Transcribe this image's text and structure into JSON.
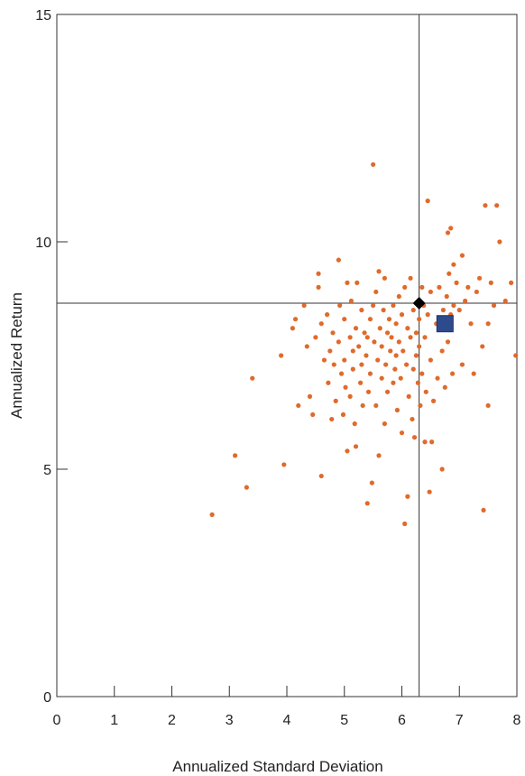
{
  "chart_data": {
    "type": "scatter",
    "title": "",
    "xlabel": "Annualized Standard Deviation",
    "ylabel": "Annualized Return",
    "xlim": [
      0,
      8
    ],
    "ylim": [
      0,
      15
    ],
    "xticks": [
      "0",
      "1",
      "2",
      "3",
      "4",
      "5",
      "6",
      "7",
      "8"
    ],
    "yticks": [
      "0",
      "5",
      "10",
      "15"
    ],
    "grid": false,
    "legend": "none",
    "reference_lines": {
      "x": 6.3,
      "y": 8.65
    },
    "colors": {
      "funds": "#e06a2c",
      "square": "#2d4a8c",
      "diamond": "#000000",
      "axis": "#333333"
    },
    "series": [
      {
        "marker": "circle",
        "points": [
          [
            2.7,
            4.0
          ],
          [
            3.1,
            5.3
          ],
          [
            3.3,
            4.6
          ],
          [
            3.4,
            7.0
          ],
          [
            3.9,
            7.5
          ],
          [
            3.95,
            5.1
          ],
          [
            4.1,
            8.1
          ],
          [
            4.15,
            8.3
          ],
          [
            4.2,
            6.4
          ],
          [
            4.3,
            8.6
          ],
          [
            4.35,
            7.7
          ],
          [
            4.4,
            6.6
          ],
          [
            4.45,
            6.2
          ],
          [
            4.5,
            7.9
          ],
          [
            4.55,
            9.3
          ],
          [
            4.55,
            9.0
          ],
          [
            4.6,
            8.2
          ],
          [
            4.6,
            4.85
          ],
          [
            4.65,
            7.4
          ],
          [
            4.7,
            8.4
          ],
          [
            4.72,
            6.9
          ],
          [
            4.75,
            7.6
          ],
          [
            4.78,
            6.1
          ],
          [
            4.8,
            8.0
          ],
          [
            4.82,
            7.3
          ],
          [
            4.85,
            6.5
          ],
          [
            4.9,
            9.6
          ],
          [
            4.9,
            7.8
          ],
          [
            4.92,
            8.6
          ],
          [
            4.95,
            7.1
          ],
          [
            4.98,
            6.2
          ],
          [
            5.0,
            8.3
          ],
          [
            5.0,
            7.4
          ],
          [
            5.02,
            6.8
          ],
          [
            5.05,
            5.4
          ],
          [
            5.05,
            9.1
          ],
          [
            5.1,
            7.9
          ],
          [
            5.1,
            6.6
          ],
          [
            5.12,
            8.7
          ],
          [
            5.15,
            7.6
          ],
          [
            5.15,
            7.2
          ],
          [
            5.18,
            6.0
          ],
          [
            5.2,
            8.1
          ],
          [
            5.2,
            5.5
          ],
          [
            5.22,
            9.1
          ],
          [
            5.25,
            7.7
          ],
          [
            5.28,
            6.9
          ],
          [
            5.3,
            8.5
          ],
          [
            5.3,
            7.3
          ],
          [
            5.32,
            6.4
          ],
          [
            5.35,
            8.0
          ],
          [
            5.38,
            7.5
          ],
          [
            5.4,
            4.25
          ],
          [
            5.4,
            7.9
          ],
          [
            5.42,
            6.7
          ],
          [
            5.45,
            8.3
          ],
          [
            5.45,
            7.1
          ],
          [
            5.48,
            4.7
          ],
          [
            5.5,
            11.7
          ],
          [
            5.5,
            8.6
          ],
          [
            5.52,
            7.8
          ],
          [
            5.55,
            6.4
          ],
          [
            5.55,
            8.9
          ],
          [
            5.58,
            7.4
          ],
          [
            5.6,
            5.3
          ],
          [
            5.6,
            9.35
          ],
          [
            5.62,
            8.1
          ],
          [
            5.65,
            7.0
          ],
          [
            5.65,
            7.7
          ],
          [
            5.68,
            8.5
          ],
          [
            5.7,
            6.0
          ],
          [
            5.7,
            9.2
          ],
          [
            5.72,
            7.3
          ],
          [
            5.75,
            8.0
          ],
          [
            5.75,
            6.7
          ],
          [
            5.78,
            8.3
          ],
          [
            5.8,
            7.6
          ],
          [
            5.82,
            7.9
          ],
          [
            5.85,
            8.6
          ],
          [
            5.85,
            6.9
          ],
          [
            5.88,
            7.2
          ],
          [
            5.9,
            8.2
          ],
          [
            5.9,
            7.5
          ],
          [
            5.92,
            6.3
          ],
          [
            5.95,
            8.8
          ],
          [
            5.95,
            7.8
          ],
          [
            5.98,
            7.0
          ],
          [
            6.0,
            5.8
          ],
          [
            6.0,
            8.4
          ],
          [
            6.02,
            7.6
          ],
          [
            6.05,
            3.8
          ],
          [
            6.05,
            9.0
          ],
          [
            6.08,
            7.3
          ],
          [
            6.1,
            4.4
          ],
          [
            6.1,
            8.1
          ],
          [
            6.12,
            6.6
          ],
          [
            6.15,
            9.2
          ],
          [
            6.15,
            7.9
          ],
          [
            6.18,
            6.1
          ],
          [
            6.2,
            8.5
          ],
          [
            6.2,
            7.2
          ],
          [
            6.22,
            5.7
          ],
          [
            6.25,
            8.0
          ],
          [
            6.25,
            7.5
          ],
          [
            6.28,
            6.9
          ],
          [
            6.3,
            8.3
          ],
          [
            6.3,
            7.7
          ],
          [
            6.32,
            6.4
          ],
          [
            6.35,
            9.0
          ],
          [
            6.35,
            7.1
          ],
          [
            6.38,
            8.6
          ],
          [
            6.4,
            5.6
          ],
          [
            6.4,
            7.9
          ],
          [
            6.42,
            6.7
          ],
          [
            6.45,
            10.9
          ],
          [
            6.45,
            8.4
          ],
          [
            6.48,
            4.5
          ],
          [
            6.5,
            7.4
          ],
          [
            6.5,
            8.9
          ],
          [
            6.52,
            5.6
          ],
          [
            6.55,
            6.5
          ],
          [
            6.6,
            8.2
          ],
          [
            6.62,
            7.0
          ],
          [
            6.65,
            9.0
          ],
          [
            6.7,
            5.0
          ],
          [
            6.7,
            7.6
          ],
          [
            6.72,
            8.5
          ],
          [
            6.75,
            6.8
          ],
          [
            6.78,
            8.8
          ],
          [
            6.8,
            10.2
          ],
          [
            6.8,
            7.8
          ],
          [
            6.82,
            9.3
          ],
          [
            6.85,
            8.4
          ],
          [
            6.85,
            10.3
          ],
          [
            6.88,
            7.1
          ],
          [
            6.9,
            9.5
          ],
          [
            6.9,
            8.6
          ],
          [
            6.95,
            9.1
          ],
          [
            7.0,
            8.5
          ],
          [
            7.05,
            7.3
          ],
          [
            7.05,
            9.7
          ],
          [
            7.1,
            8.7
          ],
          [
            7.15,
            9.0
          ],
          [
            7.2,
            8.2
          ],
          [
            7.25,
            7.1
          ],
          [
            7.3,
            8.9
          ],
          [
            7.35,
            9.2
          ],
          [
            7.4,
            7.7
          ],
          [
            7.42,
            4.1
          ],
          [
            7.45,
            10.8
          ],
          [
            7.5,
            8.2
          ],
          [
            7.5,
            6.4
          ],
          [
            7.55,
            9.1
          ],
          [
            7.6,
            8.6
          ],
          [
            7.65,
            10.8
          ],
          [
            7.7,
            10.0
          ],
          [
            7.8,
            8.7
          ],
          [
            7.9,
            9.1
          ],
          [
            7.98,
            7.5
          ]
        ]
      },
      {
        "marker": "square",
        "points": [
          [
            6.75,
            8.2
          ]
        ]
      },
      {
        "marker": "diamond",
        "points": [
          [
            6.3,
            8.65
          ]
        ]
      }
    ]
  }
}
